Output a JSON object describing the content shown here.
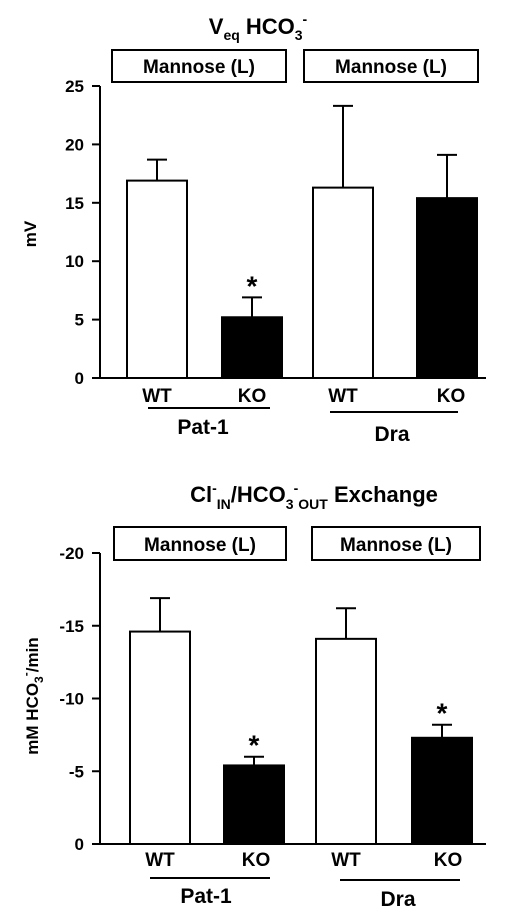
{
  "colors": {
    "WT": "#ffffff",
    "KO": "#000000"
  },
  "chart_data": [
    {
      "type": "bar",
      "title_main": "V",
      "title_sub": "eq",
      "title_rest": "HCO",
      "title_rest_sub": "3",
      "title_rest_sup": "-",
      "ylabel": "mV",
      "ylim": [
        0,
        25
      ],
      "yticks": [
        "0",
        "5",
        "10",
        "15",
        "20",
        "25"
      ],
      "condition_labels": [
        "Mannose (L)",
        "Mannose (L)"
      ],
      "group_labels": [
        "Pat-1",
        "Dra"
      ],
      "categories": [
        "WT",
        "KO",
        "WT",
        "KO"
      ],
      "values": [
        16.9,
        5.2,
        16.3,
        15.4
      ],
      "errors": [
        1.8,
        1.7,
        7.0,
        3.7
      ],
      "significant": [
        false,
        true,
        false,
        false
      ],
      "significance_mark": "*"
    },
    {
      "type": "bar",
      "title_parts": [
        {
          "text": "Cl",
          "pos": "normal"
        },
        {
          "text": "-",
          "pos": "sup"
        },
        {
          "text": "IN",
          "pos": "sub"
        },
        {
          "text": "/HCO",
          "pos": "normal"
        },
        {
          "text": "3",
          "pos": "sub"
        },
        {
          "text": "-",
          "pos": "sup"
        },
        {
          "text": "OUT",
          "pos": "sub"
        },
        {
          "text": " Exchange",
          "pos": "normal"
        }
      ],
      "ylabel_main": "mM HCO",
      "ylabel_sub": "3",
      "ylabel_sup": "-",
      "ylabel_rest": "/min",
      "ylim": [
        0,
        -20
      ],
      "yticks": [
        "0",
        "-5",
        "-10",
        "-15",
        "-20"
      ],
      "condition_labels": [
        "Mannose (L)",
        "Mannose (L)"
      ],
      "group_labels": [
        "Pat-1",
        "Dra"
      ],
      "categories": [
        "WT",
        "KO",
        "WT",
        "KO"
      ],
      "values": [
        -14.6,
        -5.4,
        -14.1,
        -7.3
      ],
      "errors": [
        2.3,
        0.6,
        2.1,
        0.9
      ],
      "significant": [
        false,
        true,
        false,
        true
      ],
      "significance_mark": "*"
    }
  ]
}
